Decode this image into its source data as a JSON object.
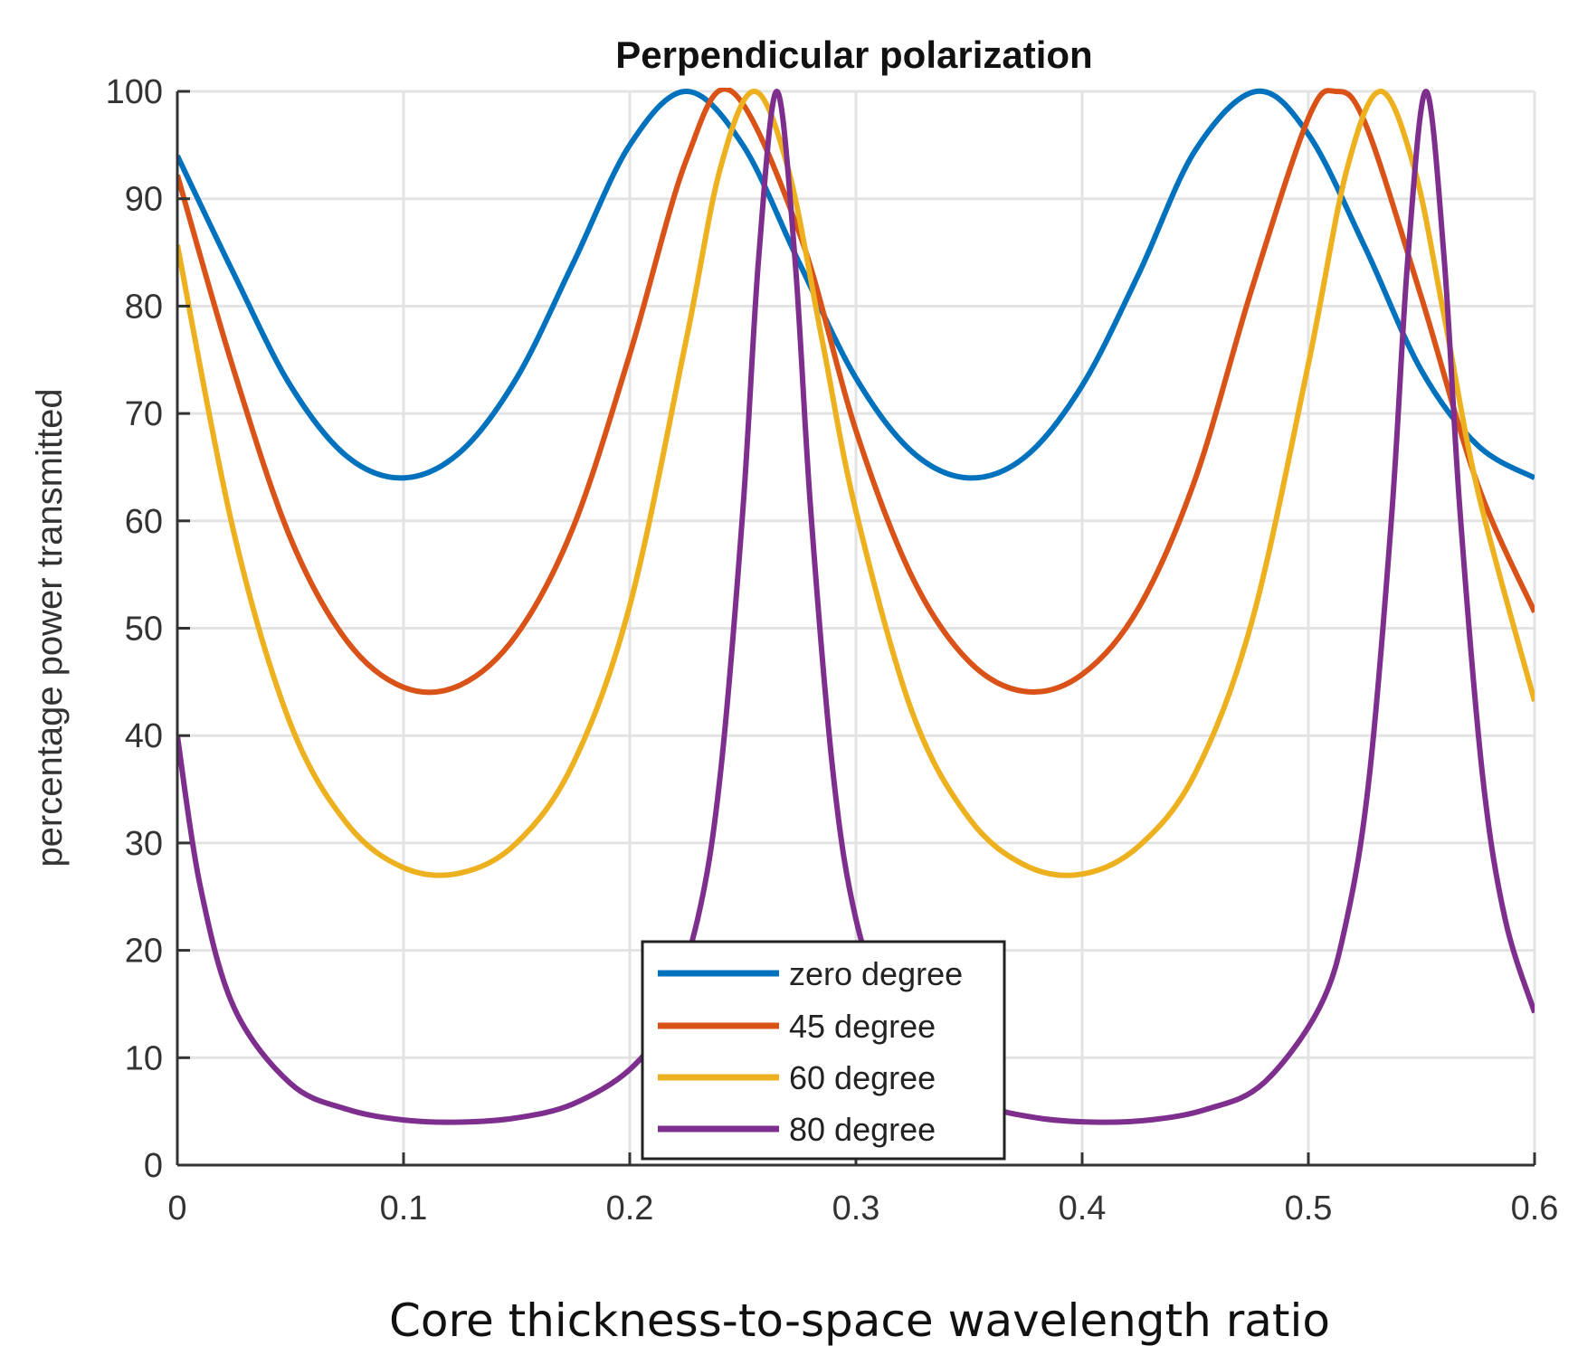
{
  "chart_data": {
    "type": "line",
    "title": "Perpendicular polarization",
    "xlabel": "Core thickness-to-space wavelength ratio",
    "ylabel": "percentage power transmitted",
    "xlim": [
      0,
      0.6
    ],
    "ylim": [
      0,
      100
    ],
    "xticks": [
      0,
      0.1,
      0.2,
      0.3,
      0.4,
      0.5,
      0.6
    ],
    "xtick_labels": [
      "0",
      "0.1",
      "0.2",
      "0.3",
      "0.4",
      "0.5",
      "0.6"
    ],
    "yticks": [
      0,
      10,
      20,
      30,
      40,
      50,
      60,
      70,
      80,
      90,
      100
    ],
    "ytick_labels": [
      "0",
      "10",
      "20",
      "30",
      "40",
      "50",
      "60",
      "70",
      "80",
      "90",
      "100"
    ],
    "grid": true,
    "legend_position": "bottom-center",
    "series": [
      {
        "name": "zero degree",
        "color": "#0072BD",
        "x": [
          0,
          0.025,
          0.05,
          0.075,
          0.1,
          0.125,
          0.15,
          0.175,
          0.2,
          0.225,
          0.25,
          0.275,
          0.3,
          0.325,
          0.35,
          0.375,
          0.4,
          0.425,
          0.45,
          0.477,
          0.5,
          0.525,
          0.55,
          0.575,
          0.6
        ],
        "y": [
          94,
          83,
          72.6,
          66,
          64,
          66.4,
          73.3,
          84,
          95,
          100,
          95,
          84,
          73.3,
          66.4,
          64,
          66,
          72.6,
          83,
          94.5,
          100,
          96,
          85.5,
          74,
          67,
          64
        ]
      },
      {
        "name": "45 degree",
        "color": "#D95319",
        "x": [
          0,
          0.025,
          0.05,
          0.075,
          0.1,
          0.125,
          0.15,
          0.175,
          0.2,
          0.225,
          0.245,
          0.275,
          0.3,
          0.325,
          0.35,
          0.375,
          0.4,
          0.425,
          0.45,
          0.475,
          0.5,
          0.512,
          0.525,
          0.55,
          0.575,
          0.6
        ],
        "y": [
          92.2,
          74,
          58.4,
          48.8,
          44.5,
          44.7,
          49.4,
          59.4,
          75.5,
          93.6,
          100,
          86.8,
          68.4,
          54.7,
          46.9,
          44.1,
          45.7,
          51.9,
          63.9,
          81.6,
          97.5,
          100,
          97.1,
          80.8,
          63.3,
          51.5
        ]
      },
      {
        "name": "60 degree",
        "color": "#EDB120",
        "x": [
          0,
          0.025,
          0.05,
          0.075,
          0.1,
          0.125,
          0.15,
          0.175,
          0.2,
          0.225,
          0.24,
          0.255,
          0.27,
          0.285,
          0.3,
          0.325,
          0.35,
          0.375,
          0.4,
          0.425,
          0.45,
          0.475,
          0.5,
          0.517,
          0.532,
          0.547,
          0.56,
          0.575,
          0.6
        ],
        "y": [
          85.7,
          58.9,
          41.1,
          31.8,
          27.7,
          27.2,
          30,
          37.4,
          52.1,
          76.9,
          92.8,
          100,
          92.8,
          76.9,
          60.9,
          42.1,
          32.3,
          27.9,
          27.1,
          29.7,
          36.5,
          50.6,
          74.6,
          92.7,
          100,
          92.7,
          79.1,
          62.7,
          43.2
        ]
      },
      {
        "name": "80 degree",
        "color": "#7E2F8E",
        "x": [
          0,
          0.01,
          0.025,
          0.05,
          0.075,
          0.1,
          0.125,
          0.15,
          0.175,
          0.2,
          0.215,
          0.23,
          0.24,
          0.25,
          0.257,
          0.265,
          0.273,
          0.28,
          0.29,
          0.3,
          0.315,
          0.33,
          0.355,
          0.38,
          0.405,
          0.43,
          0.455,
          0.48,
          0.505,
          0.517,
          0.527,
          0.537,
          0.544,
          0.552,
          0.56,
          0.567,
          0.577,
          0.587,
          0.6
        ],
        "y": [
          40,
          26.1,
          14.7,
          7.6,
          5.2,
          4.2,
          4,
          4.4,
          5.7,
          8.9,
          13.4,
          22.9,
          36.3,
          61,
          84.5,
          100,
          84.5,
          61,
          36.3,
          22.9,
          13.4,
          8.9,
          5.7,
          4.4,
          4,
          4.2,
          5.2,
          7.6,
          14.7,
          22.9,
          36.3,
          61,
          84.5,
          100,
          84.5,
          61,
          36.3,
          22.9,
          14.2
        ]
      }
    ]
  }
}
